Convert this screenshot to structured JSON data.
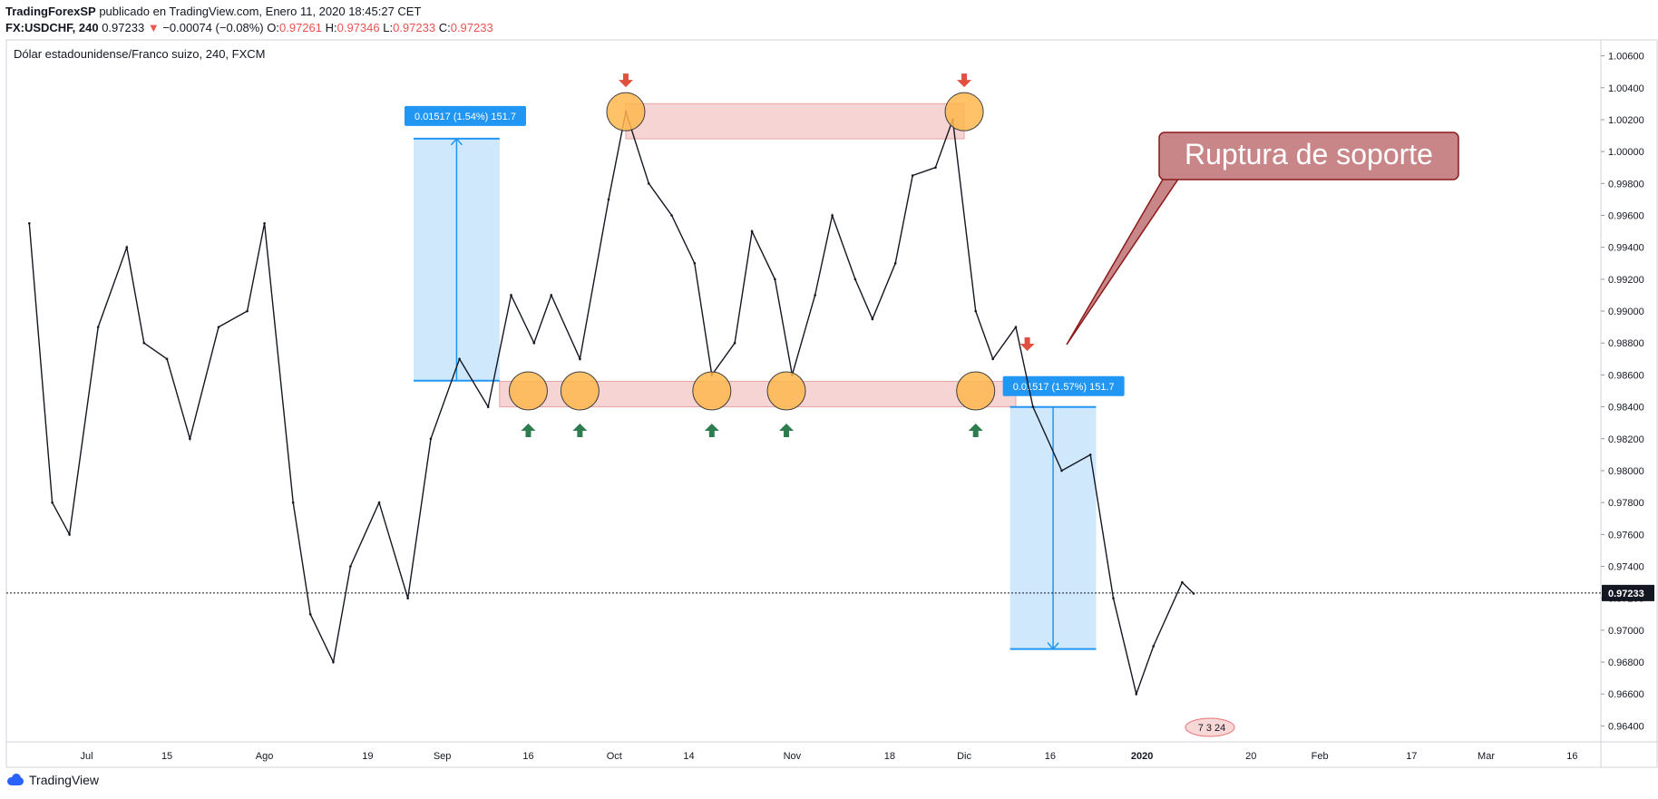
{
  "header": {
    "author": "TradingForexSP",
    "published": "publicado en TradingView.com, Enero 11, 2020 18:45:27 CET",
    "symbol": "FX:USDCHF, 240",
    "last": "0.97233",
    "change_arrow": "▼",
    "change": "−0.00074 (−0.08%)",
    "o_label": "O:",
    "o": "0.97261",
    "h_label": "H:",
    "h": "0.97346",
    "l_label": "L:",
    "l": "0.97233",
    "c_label": "C:",
    "c": "0.97233"
  },
  "footer": {
    "brand": "TradingView",
    "icon": "tradingview-cloud-icon"
  },
  "chart_data": {
    "type": "line",
    "title": "Dólar estadounidense/Franco suizo, 240, FXCM",
    "xlabel": "",
    "ylabel": "",
    "x": [
      "2019-06-21",
      "2019-06-25",
      "2019-06-28",
      "2019-07-03",
      "2019-07-08",
      "2019-07-11",
      "2019-07-15",
      "2019-07-19",
      "2019-07-24",
      "2019-07-29",
      "2019-08-01",
      "2019-08-06",
      "2019-08-09",
      "2019-08-13",
      "2019-08-16",
      "2019-08-21",
      "2019-08-26",
      "2019-08-30",
      "2019-09-04",
      "2019-09-09",
      "2019-09-13",
      "2019-09-17",
      "2019-09-20",
      "2019-09-25",
      "2019-09-30",
      "2019-10-03",
      "2019-10-07",
      "2019-10-11",
      "2019-10-15",
      "2019-10-18",
      "2019-10-22",
      "2019-10-25",
      "2019-10-29",
      "2019-11-01",
      "2019-11-05",
      "2019-11-08",
      "2019-11-12",
      "2019-11-15",
      "2019-11-19",
      "2019-11-22",
      "2019-11-26",
      "2019-11-29",
      "2019-12-03",
      "2019-12-06",
      "2019-12-10",
      "2019-12-13",
      "2019-12-18",
      "2019-12-23",
      "2019-12-27",
      "2019-12-31",
      "2020-01-03",
      "2020-01-08",
      "2020-01-10"
    ],
    "series": [
      {
        "values": [
          0.9955,
          0.978,
          0.976,
          0.989,
          0.994,
          0.988,
          0.987,
          0.982,
          0.989,
          0.99,
          0.9955,
          0.978,
          0.971,
          0.968,
          0.974,
          0.978,
          0.972,
          0.982,
          0.987,
          0.984,
          0.991,
          0.988,
          0.991,
          0.987,
          0.997,
          1.0025,
          0.998,
          0.996,
          0.993,
          0.986,
          0.988,
          0.995,
          0.992,
          0.986,
          0.991,
          0.996,
          0.992,
          0.9895,
          0.993,
          0.9985,
          0.999,
          1.002,
          0.99,
          0.987,
          0.989,
          0.984,
          0.98,
          0.981,
          0.972,
          0.966,
          0.969,
          0.973,
          0.9723
        ]
      }
    ],
    "x_ticks": [
      "Jul",
      "15",
      "Ago",
      "19",
      "Sep",
      "16",
      "Oct",
      "14",
      "Nov",
      "18",
      "Dic",
      "16",
      "2020",
      "20",
      "Feb",
      "17",
      "Mar",
      "16"
    ],
    "y_ticks": [
      "1.00600",
      "1.00400",
      "1.00200",
      "1.00000",
      "0.99800",
      "0.99600",
      "0.99400",
      "0.99200",
      "0.99000",
      "0.98800",
      "0.98600",
      "0.98400",
      "0.98200",
      "0.98000",
      "0.97800",
      "0.97600",
      "0.97400",
      "0.97200",
      "0.97000",
      "0.96800",
      "0.96600",
      "0.96400"
    ],
    "ylim": [
      0.963,
      1.007
    ],
    "last_price": 0.97233,
    "last_price_label": "0.97233",
    "grid": false,
    "resistance_zone": {
      "from": "2019-10-03",
      "to": "2019-12-01",
      "low": 1.0008,
      "high": 1.003
    },
    "support_zone": {
      "from": "2019-09-11",
      "to": "2019-12-10",
      "low": 0.984,
      "high": 0.9856
    },
    "measures": [
      {
        "label": "0.01517 (1.54%) 151.7",
        "from": "2019-08-27",
        "to": "2019-09-11",
        "low": 0.98564,
        "high": 1.00081,
        "direction": "up"
      },
      {
        "label": "0.01517 (1.57%) 151.7",
        "from": "2019-12-09",
        "to": "2019-12-24",
        "low": 0.96882,
        "high": 0.98399,
        "direction": "down"
      }
    ],
    "touch_circles": [
      {
        "x": "2019-10-03",
        "y": 1.0025,
        "arrow": "down"
      },
      {
        "x": "2019-12-01",
        "y": 1.0025,
        "arrow": "down"
      },
      {
        "x": "2019-09-16",
        "y": 0.985,
        "arrow": "up"
      },
      {
        "x": "2019-09-25",
        "y": 0.985,
        "arrow": "up"
      },
      {
        "x": "2019-10-18",
        "y": 0.985,
        "arrow": "up"
      },
      {
        "x": "2019-10-31",
        "y": 0.985,
        "arrow": "up"
      },
      {
        "x": "2019-12-03",
        "y": 0.985,
        "arrow": "up"
      }
    ],
    "breakout_arrow": {
      "x": "2019-12-12",
      "y": 0.9875,
      "arrow": "down"
    },
    "callout": {
      "text": "Ruptura de soporte",
      "color": "#c98688"
    },
    "event_markers": "7 3 24",
    "colors": {
      "zone_fill": "#f4cccc",
      "zone_border": "#e6a3a3",
      "measure": "#2196f3",
      "measure_fill": "#bbdefb",
      "circle": "#ffb74d",
      "up_arrow": "#2e7d4f",
      "down_arrow": "#e0503f"
    }
  }
}
